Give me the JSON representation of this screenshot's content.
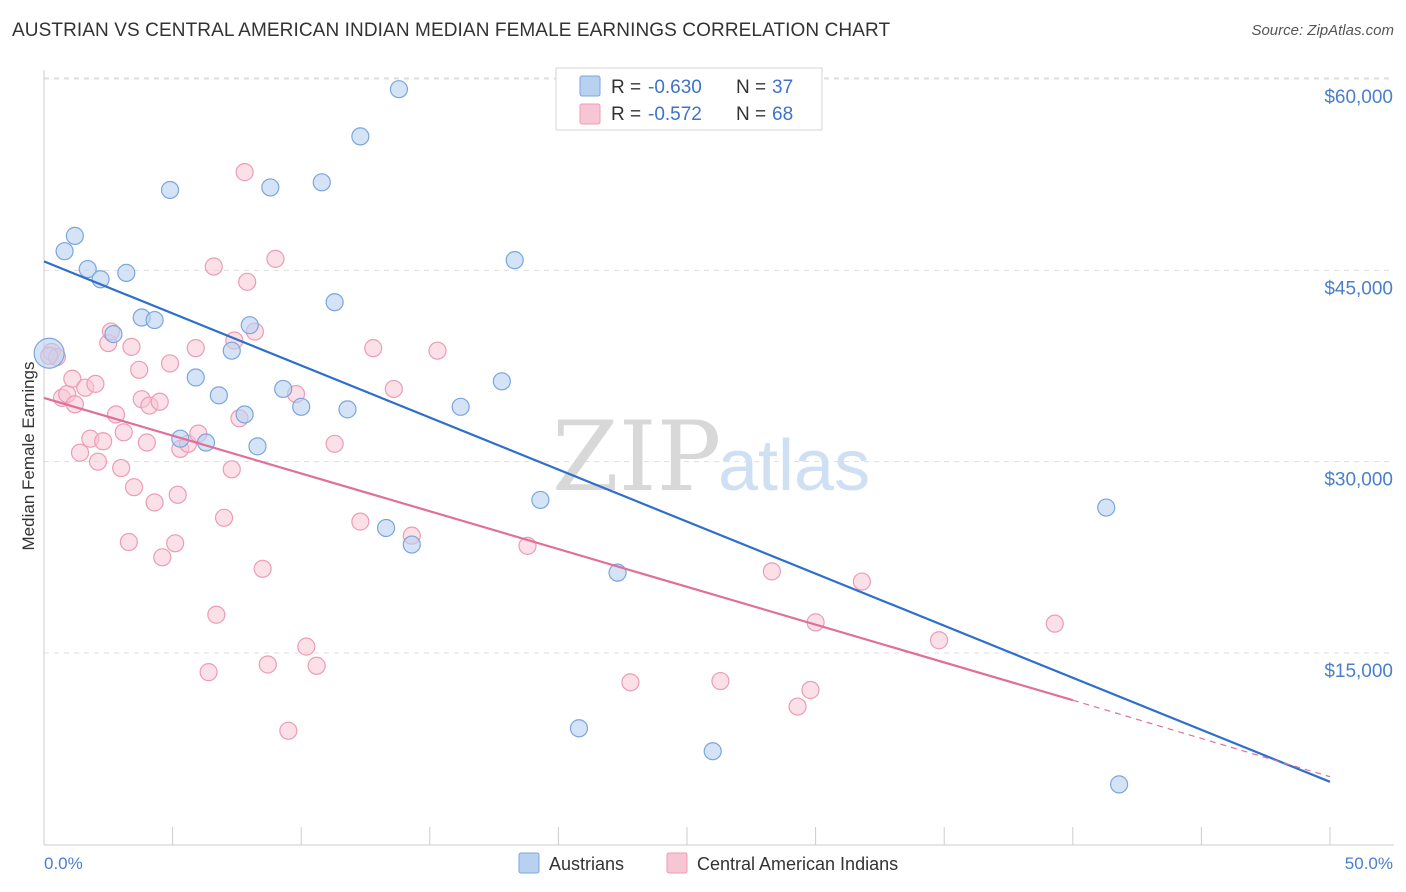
{
  "header": {
    "title": "AUSTRIAN VS CENTRAL AMERICAN INDIAN MEDIAN FEMALE EARNINGS CORRELATION CHART",
    "source": "Source: ZipAtlas.com"
  },
  "watermark": {
    "zip": "ZIP",
    "atlas": "atlas"
  },
  "legend_top": {
    "rows": [
      {
        "r_label": "R =",
        "r_value": "-0.630",
        "n_label": "N =",
        "n_value": "37"
      },
      {
        "r_label": "R =",
        "r_value": "-0.572",
        "n_label": "N =",
        "n_value": "68"
      }
    ]
  },
  "legend_bottom": {
    "items": [
      {
        "label": "Austrians"
      },
      {
        "label": "Central American Indians"
      }
    ]
  },
  "colors": {
    "austrians_fill": "#b9d1f0",
    "austrians_stroke": "#7aa6de",
    "austrians_line": "#2f6fcc",
    "cai_fill": "#f7c6d5",
    "cai_stroke": "#ec9cb6",
    "cai_line": "#e07098",
    "grid": "#dddddd",
    "axis_text": "#4a7fc9"
  },
  "chart_data": {
    "type": "scatter",
    "ylabel": "Median Female Earnings",
    "x_tick_labels": {
      "left": "0.0%",
      "right": "50.0%"
    },
    "xlim": [
      0,
      50
    ],
    "ylim": [
      0,
      63000
    ],
    "y_ticks": [
      {
        "value": 15000,
        "label": "$15,000"
      },
      {
        "value": 30000,
        "label": "$30,000"
      },
      {
        "value": 45000,
        "label": "$45,000"
      },
      {
        "value": 60000,
        "label": "$60,000"
      }
    ],
    "grid": true,
    "series": [
      {
        "name": "Austrians",
        "trend": {
          "x0": 0,
          "y0": 45700,
          "x1": 50,
          "y1": 4900
        },
        "points": [
          [
            0.2,
            38500
          ],
          [
            0.8,
            46500
          ],
          [
            1.2,
            47700
          ],
          [
            1.7,
            45100
          ],
          [
            2.2,
            44300
          ],
          [
            2.7,
            40000
          ],
          [
            3.2,
            44800
          ],
          [
            3.8,
            41300
          ],
          [
            4.3,
            41100
          ],
          [
            4.9,
            51300
          ],
          [
            5.3,
            31800
          ],
          [
            5.9,
            36600
          ],
          [
            6.3,
            31500
          ],
          [
            6.8,
            35200
          ],
          [
            7.3,
            38700
          ],
          [
            7.8,
            33700
          ],
          [
            8.3,
            31200
          ],
          [
            8.8,
            51500
          ],
          [
            9.3,
            35700
          ],
          [
            10.0,
            34300
          ],
          [
            10.8,
            51900
          ],
          [
            11.3,
            42500
          ],
          [
            11.8,
            34100
          ],
          [
            12.3,
            55500
          ],
          [
            13.3,
            24800
          ],
          [
            13.8,
            59200
          ],
          [
            14.3,
            23500
          ],
          [
            16.2,
            34300
          ],
          [
            17.8,
            36300
          ],
          [
            18.3,
            45800
          ],
          [
            19.3,
            27000
          ],
          [
            22.3,
            21300
          ],
          [
            26.0,
            7300
          ],
          [
            20.8,
            9100
          ],
          [
            41.3,
            26400
          ],
          [
            41.8,
            4700
          ],
          [
            8.0,
            40700
          ]
        ]
      },
      {
        "name": "Central American Indians",
        "trend": {
          "x0": 0,
          "y0": 35000,
          "x1": 40,
          "y1": 11300,
          "dashed_to_x": 50,
          "dashed_to_y": 5300
        },
        "points": [
          [
            0.3,
            38600
          ],
          [
            0.5,
            38200
          ],
          [
            0.7,
            35000
          ],
          [
            0.9,
            35300
          ],
          [
            1.1,
            36500
          ],
          [
            1.2,
            34500
          ],
          [
            1.4,
            30700
          ],
          [
            1.6,
            35800
          ],
          [
            1.8,
            31800
          ],
          [
            2.0,
            36100
          ],
          [
            2.1,
            30000
          ],
          [
            2.3,
            31600
          ],
          [
            2.5,
            39300
          ],
          [
            2.6,
            40200
          ],
          [
            2.8,
            33700
          ],
          [
            3.0,
            29500
          ],
          [
            3.1,
            32300
          ],
          [
            3.3,
            23700
          ],
          [
            3.4,
            39000
          ],
          [
            3.5,
            28000
          ],
          [
            3.7,
            37200
          ],
          [
            3.8,
            34900
          ],
          [
            4.0,
            31500
          ],
          [
            4.1,
            34400
          ],
          [
            4.3,
            26800
          ],
          [
            4.5,
            34700
          ],
          [
            4.6,
            22500
          ],
          [
            4.9,
            37700
          ],
          [
            5.1,
            23600
          ],
          [
            5.2,
            27400
          ],
          [
            5.3,
            31000
          ],
          [
            5.6,
            31400
          ],
          [
            5.9,
            38900
          ],
          [
            6.0,
            32200
          ],
          [
            6.4,
            13500
          ],
          [
            6.6,
            45300
          ],
          [
            6.7,
            18000
          ],
          [
            7.0,
            25600
          ],
          [
            7.3,
            29400
          ],
          [
            7.4,
            39500
          ],
          [
            7.6,
            33400
          ],
          [
            7.8,
            52700
          ],
          [
            7.9,
            44100
          ],
          [
            8.2,
            40200
          ],
          [
            8.5,
            21600
          ],
          [
            8.7,
            14100
          ],
          [
            9.0,
            45900
          ],
          [
            9.5,
            8900
          ],
          [
            9.8,
            35300
          ],
          [
            10.2,
            15500
          ],
          [
            10.6,
            14000
          ],
          [
            11.3,
            31400
          ],
          [
            12.3,
            25300
          ],
          [
            12.8,
            38900
          ],
          [
            13.6,
            35700
          ],
          [
            14.3,
            24200
          ],
          [
            15.3,
            38700
          ],
          [
            18.8,
            23400
          ],
          [
            22.8,
            12700
          ],
          [
            26.3,
            12800
          ],
          [
            28.3,
            21400
          ],
          [
            29.3,
            10800
          ],
          [
            29.8,
            12100
          ],
          [
            30.0,
            17400
          ],
          [
            31.8,
            20600
          ],
          [
            34.8,
            16000
          ],
          [
            39.3,
            17300
          ],
          [
            0.2,
            38300
          ]
        ]
      }
    ]
  }
}
